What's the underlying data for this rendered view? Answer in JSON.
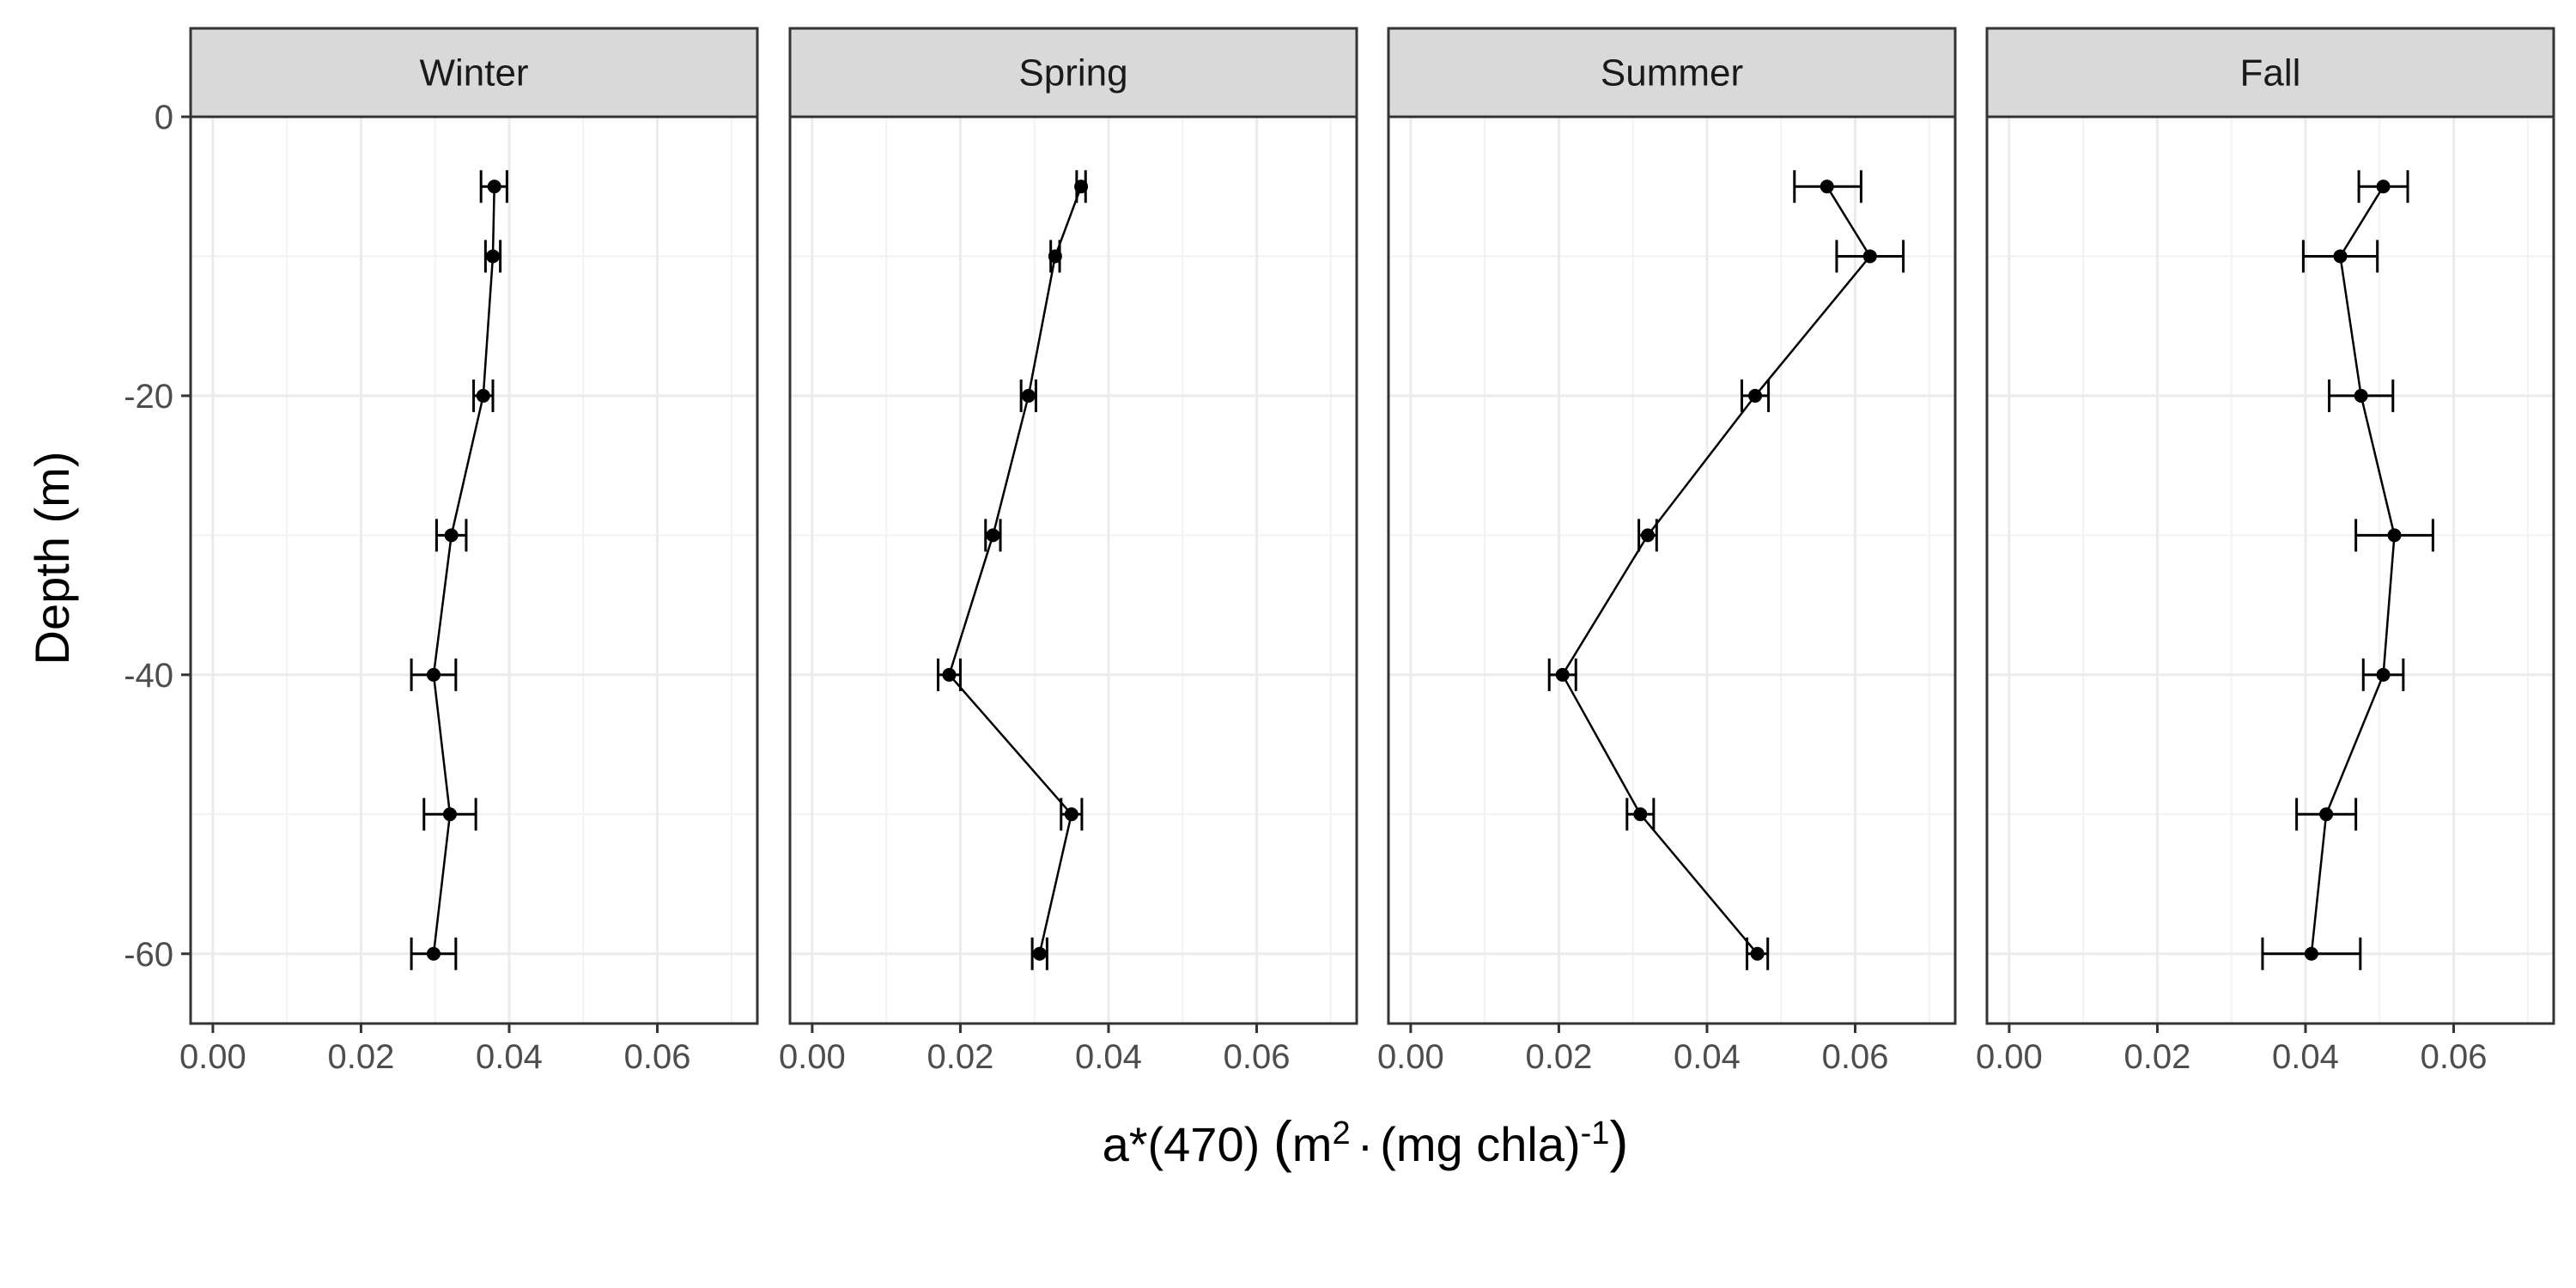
{
  "chart_data": {
    "type": "scatter",
    "layout": "faceted",
    "xlabel": "a*(470) (m²·(mg chla)⁻¹)",
    "xlabel_parts": {
      "main": "a*(470) ",
      "lp": "(",
      "m": "m",
      "sup1": "2",
      "dot": "·",
      "mg": "(mg chla)",
      "sup2": "-1",
      "rp": ")"
    },
    "ylabel": "Depth (m)",
    "xlim": [
      -0.003,
      0.0735
    ],
    "ylim": [
      -65,
      0
    ],
    "x_ticks": [
      0,
      0.02,
      0.04,
      0.06
    ],
    "x_tick_labels": [
      "0.00",
      "0.02",
      "0.04",
      "0.06"
    ],
    "y_ticks": [
      0,
      -20,
      -40,
      -60
    ],
    "y_tick_labels": [
      "0",
      "-20",
      "-40",
      "-60"
    ],
    "depths": [
      -5,
      -10,
      -20,
      -30,
      -40,
      -50,
      -60
    ],
    "grid": true,
    "panels": [
      {
        "name": "Winter",
        "mean": [
          0.038,
          0.0378,
          0.0365,
          0.0322,
          0.0298,
          0.032,
          0.0298
        ],
        "err_low": [
          0.0362,
          0.0368,
          0.0352,
          0.0302,
          0.0268,
          0.0285,
          0.0268
        ],
        "err_high": [
          0.0397,
          0.0388,
          0.0378,
          0.0342,
          0.0328,
          0.0355,
          0.0328
        ]
      },
      {
        "name": "Spring",
        "mean": [
          0.0363,
          0.0328,
          0.0292,
          0.0244,
          0.0185,
          0.035,
          0.0307
        ],
        "err_low": [
          0.0357,
          0.0322,
          0.0282,
          0.0234,
          0.017,
          0.0336,
          0.0297
        ],
        "err_high": [
          0.0369,
          0.0334,
          0.0302,
          0.0254,
          0.02,
          0.0364,
          0.0317
        ]
      },
      {
        "name": "Summer",
        "mean": [
          0.0562,
          0.062,
          0.0465,
          0.032,
          0.0205,
          0.031,
          0.0468
        ],
        "err_low": [
          0.0518,
          0.0575,
          0.0447,
          0.0308,
          0.0187,
          0.0292,
          0.0454
        ],
        "err_high": [
          0.0608,
          0.0665,
          0.0483,
          0.0332,
          0.0223,
          0.0328,
          0.0482
        ]
      },
      {
        "name": "Fall",
        "mean": [
          0.0505,
          0.0447,
          0.0475,
          0.052,
          0.0505,
          0.0428,
          0.0408
        ],
        "err_low": [
          0.0472,
          0.0397,
          0.0432,
          0.0468,
          0.0478,
          0.0388,
          0.0342
        ],
        "err_high": [
          0.0538,
          0.0497,
          0.0518,
          0.0572,
          0.0532,
          0.0468,
          0.0474
        ]
      }
    ]
  }
}
